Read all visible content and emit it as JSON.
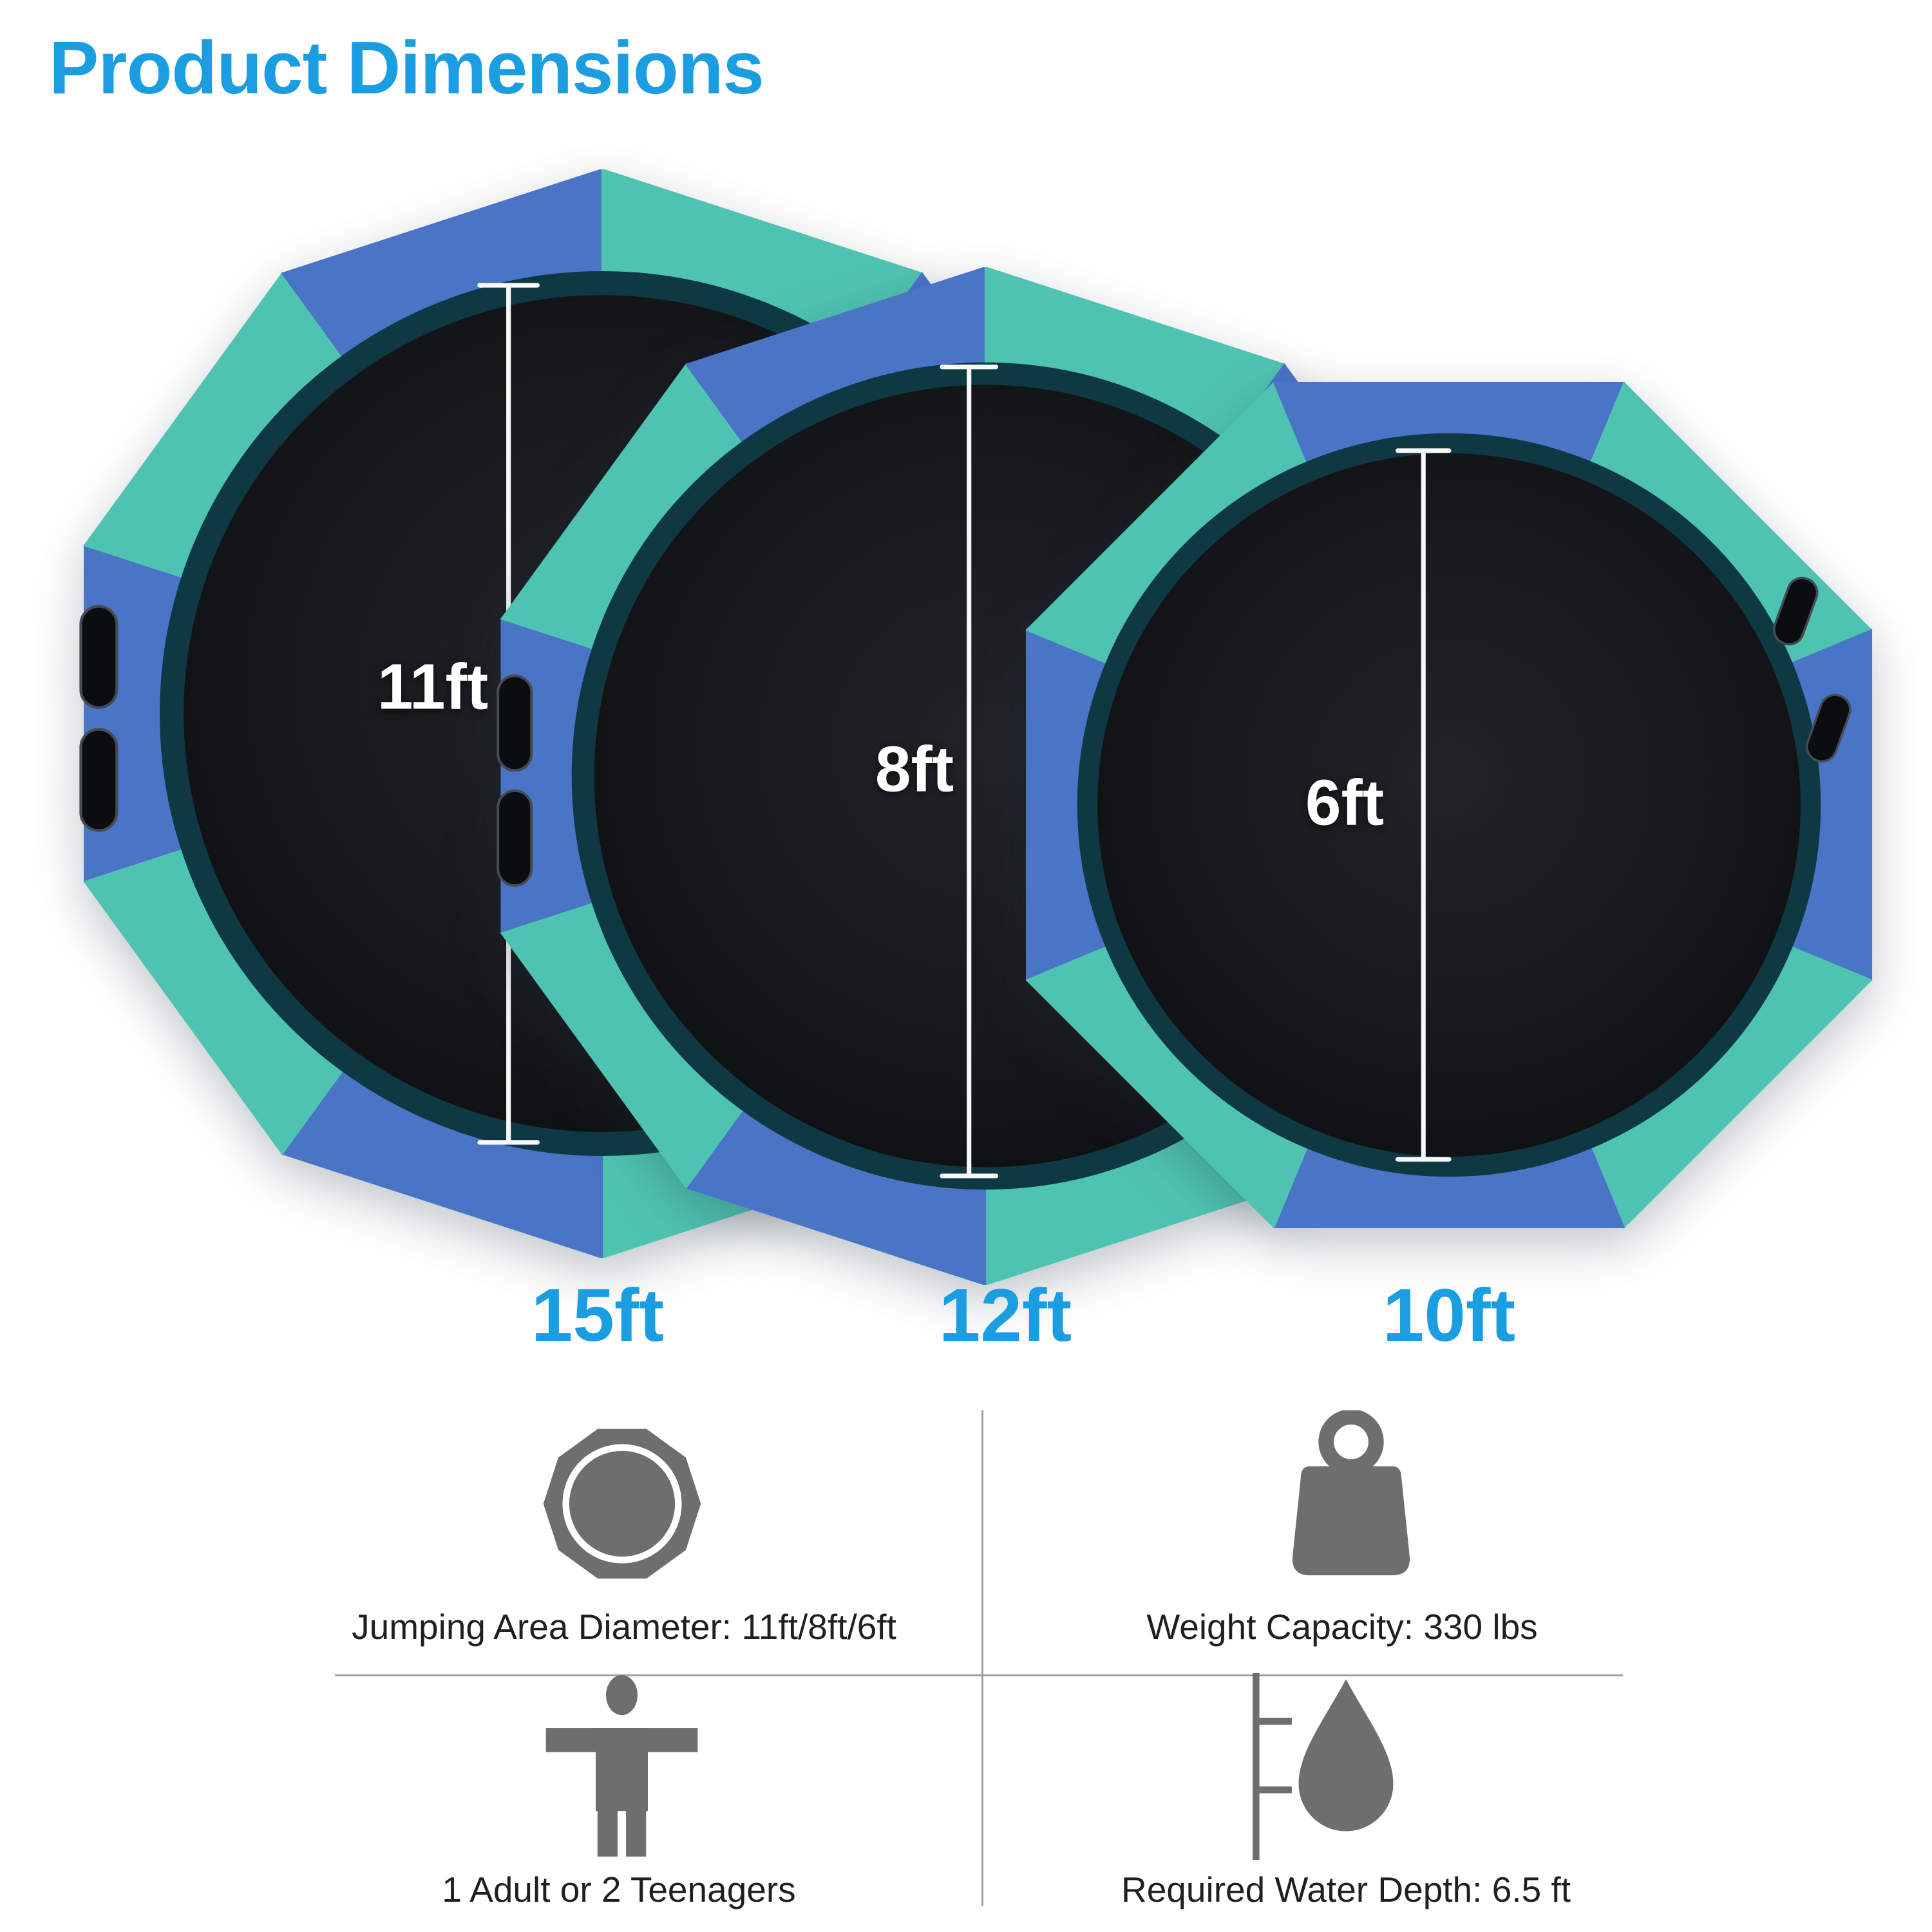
{
  "title": {
    "text": "Product Dimensions"
  },
  "colors": {
    "accent_blue": "#1b9de2",
    "tube_blue": "#4a74c6",
    "tube_teal": "#4fc3b1",
    "mat_black": "#16171a",
    "mesh_dark": "#0e3943",
    "icon_gray": "#6e6e6e",
    "text_dark": "#1f1f1f",
    "divider_gray": "#a0a0a0",
    "measure_white": "#ffffff"
  },
  "trampolines": [
    {
      "name": "15ft trampoline",
      "frame_label": "15ft",
      "mat_label": "11ft"
    },
    {
      "name": "12ft trampoline",
      "frame_label": "12ft",
      "mat_label": "8ft"
    },
    {
      "name": "10ft trampoline",
      "frame_label": "10ft",
      "mat_label": "6ft"
    }
  ],
  "specs": [
    {
      "icon": "jumping-area-icon",
      "label": "Jumping Area Diameter: 11ft/8ft/6ft"
    },
    {
      "icon": "weight-capacity-icon",
      "label": "Weight Capacity: 330 lbs"
    },
    {
      "icon": "capacity-person-icon",
      "label": "1 Adult or 2 Teenagers"
    },
    {
      "icon": "water-depth-icon",
      "label": "Required Water Depth: 6.5 ft"
    }
  ]
}
